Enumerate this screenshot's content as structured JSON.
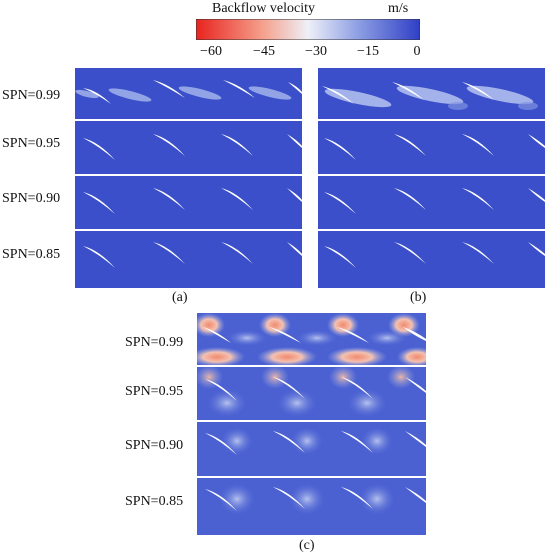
{
  "colorbar": {
    "title": "Backflow velocity",
    "unit": "m/s",
    "ticks": [
      "−60",
      "−45",
      "−30",
      "−15",
      "0"
    ],
    "colors": [
      "#e8231f",
      "#f7b9a6",
      "#e6eaf7",
      "#7f93e1",
      "#3547c9"
    ]
  },
  "panels": {
    "a": {
      "caption": "(a)",
      "rows": [
        "SPN=0.99",
        "SPN=0.95",
        "SPN=0.90",
        "SPN=0.85"
      ]
    },
    "b": {
      "caption": "(b)"
    },
    "c": {
      "caption": "(c)",
      "rows": [
        "SPN=0.99",
        "SPN=0.95",
        "SPN=0.90",
        "SPN=0.85"
      ]
    }
  },
  "field_colors": {
    "base": "#3a4fc9",
    "blade": "#ffffff",
    "hot": "#f0997f"
  }
}
